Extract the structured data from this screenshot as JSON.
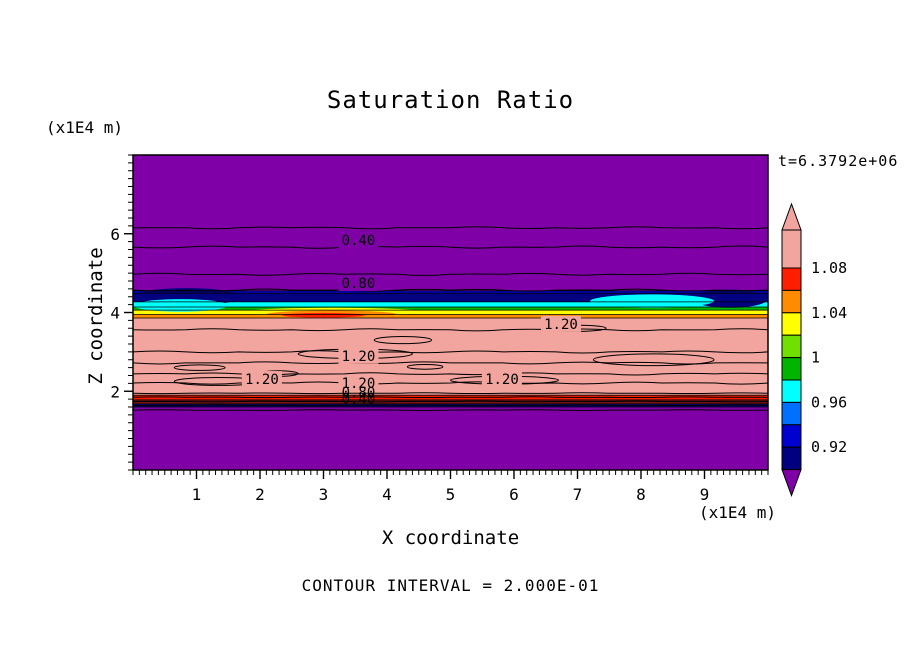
{
  "chart_data": {
    "type": "filled-contour",
    "title": "Saturation Ratio",
    "xlabel": "X coordinate",
    "ylabel": "Z coordinate",
    "x_units_label": "(x1E4 m)",
    "y_units_label": "(x1E4 m)",
    "time_label": "t=6.3792e+06",
    "contour_interval_label": "CONTOUR INTERVAL = 2.000E-01",
    "contour_interval": 0.2,
    "xlim": [
      0,
      10
    ],
    "ylim": [
      0,
      8
    ],
    "x_ticks": [
      1,
      2,
      3,
      4,
      5,
      6,
      7,
      8,
      9
    ],
    "y_ticks": [
      2,
      4,
      6
    ],
    "grid": false,
    "legend_position": "right-colorbar",
    "palette": {
      "purple": "#8000A8",
      "navy": "#000080",
      "blue_dark": "#0000D0",
      "blue": "#0070FF",
      "cyan": "#00FFFF",
      "green": "#00B400",
      "yellow_green": "#70E000",
      "yellow": "#FFFF00",
      "orange": "#FF8C00",
      "red": "#FF1E00",
      "pink": "#F2A49E",
      "maroon": "#7C1414"
    },
    "bands": [
      {
        "value_range": "< 0.90",
        "z_from": 4.55,
        "z_to": 8.0,
        "color": "#8000A8"
      },
      {
        "value_range": "0.92 - 0.94",
        "z_from": 4.49,
        "z_to": 4.55,
        "color": "#0000D0"
      },
      {
        "value_range": "0.90 - 0.92",
        "z_from": 4.27,
        "z_to": 4.49,
        "color": "#000080"
      },
      {
        "value_range": "0.96 - 0.98",
        "z_from": 4.14,
        "z_to": 4.27,
        "color": "#00FFFF"
      },
      {
        "value_range": "0.98 - 1.00",
        "z_from": 4.06,
        "z_to": 4.14,
        "color": "#00B400"
      },
      {
        "value_range": "1.02 - 1.04",
        "z_from": 3.95,
        "z_to": 4.06,
        "color": "#FFFF00"
      },
      {
        "value_range": "1.04 - 1.06",
        "z_from": 3.86,
        "z_to": 3.95,
        "color": "#FF8C00"
      },
      {
        "value_range": "> 1.08",
        "z_from": 1.9,
        "z_to": 3.86,
        "color": "#F2A49E"
      },
      {
        "value_range": "1.06 - 1.08",
        "z_from": 1.78,
        "z_to": 1.9,
        "color": "#FF1E00"
      },
      {
        "value_range": "transition",
        "z_from": 1.68,
        "z_to": 1.78,
        "color": "#7C1414"
      },
      {
        "value_range": "0.90 - 0.92",
        "z_from": 1.6,
        "z_to": 1.68,
        "color": "#000080"
      },
      {
        "value_range": "< 0.90",
        "z_from": 0.0,
        "z_to": 1.6,
        "color": "#8000A8"
      }
    ],
    "contour_lines": [
      {
        "level": 0.2,
        "z": 6.15
      },
      {
        "level": 0.4,
        "z": 5.66
      },
      {
        "level": 0.6,
        "z": 4.97
      },
      {
        "level": 0.8,
        "z": 4.57
      },
      {
        "level": 1.2,
        "z": 3.56
      },
      {
        "level": 1.2,
        "z": 3.0
      },
      {
        "level": 1.2,
        "z": 2.72
      },
      {
        "level": 1.2,
        "z": 2.44
      },
      {
        "level": 1.2,
        "z": 2.21
      },
      {
        "level": 1.0,
        "z": 1.95
      },
      {
        "level": 0.8,
        "z": 1.85
      },
      {
        "level": 0.6,
        "z": 1.74
      },
      {
        "level": 0.4,
        "z": 1.64
      },
      {
        "level": 0.2,
        "z": 1.52
      }
    ],
    "contour_labels": [
      {
        "text": "0.40",
        "x": 3.55,
        "z": 5.84,
        "bg": "#8000A8"
      },
      {
        "text": "0.80",
        "x": 3.55,
        "z": 4.75,
        "bg": "#8000A8"
      },
      {
        "text": "1.20",
        "x": 6.74,
        "z": 3.71,
        "bg": "#F2A49E"
      },
      {
        "text": "1.20",
        "x": 3.55,
        "z": 2.9,
        "bg": "#F2A49E"
      },
      {
        "text": "1.20",
        "x": 2.03,
        "z": 2.31,
        "bg": "#F2A49E"
      },
      {
        "text": "1.20",
        "x": 5.81,
        "z": 2.31,
        "bg": "#F2A49E"
      },
      {
        "text": "1.20",
        "x": 3.55,
        "z": 2.21,
        "bg": "#F2A49E"
      },
      {
        "text": "0.80",
        "x": 3.55,
        "z": 1.98,
        "bg": null
      },
      {
        "text": "0.40",
        "x": 3.55,
        "z": 1.81,
        "bg": null
      }
    ],
    "colorbar": {
      "labels": [
        "1.08",
        "1.04",
        "1",
        "0.96",
        "0.92"
      ],
      "arrow_top_color": "#F2A49E",
      "arrow_bottom_color": "#8000A8",
      "segments": [
        {
          "range": "> 1.08",
          "color": "#F2A49E"
        },
        {
          "range": "1.06 - 1.08",
          "color": "#FF1E00"
        },
        {
          "range": "1.04 - 1.06",
          "color": "#FF8C00"
        },
        {
          "range": "1.02 - 1.04",
          "color": "#FFFF00"
        },
        {
          "range": "1.00 - 1.02",
          "color": "#70E000"
        },
        {
          "range": "0.98 - 1.00",
          "color": "#00B400"
        },
        {
          "range": "0.96 - 0.98",
          "color": "#00FFFF"
        },
        {
          "range": "0.94 - 0.96",
          "color": "#0070FF"
        },
        {
          "range": "0.92 - 0.94",
          "color": "#0000D0"
        },
        {
          "range": "0.90 - 0.92",
          "color": "#000080"
        }
      ]
    }
  }
}
